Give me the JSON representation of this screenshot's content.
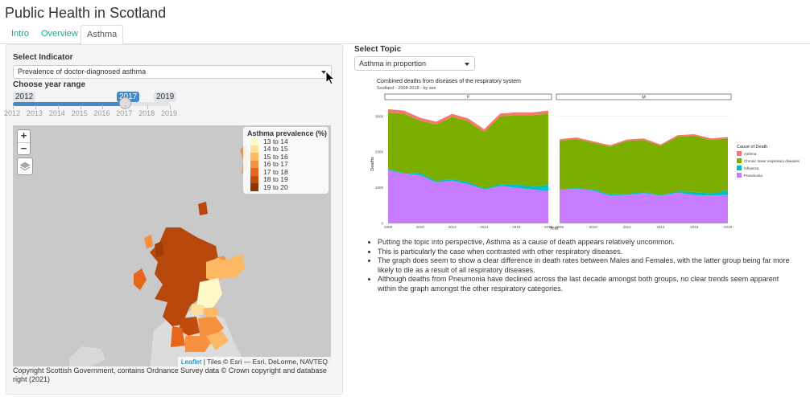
{
  "app": {
    "title": "Public Health in Scotland"
  },
  "tabs": [
    {
      "label": "Intro"
    },
    {
      "label": "Overview"
    },
    {
      "label": "Asthma"
    }
  ],
  "sidebar": {
    "indicator_label": "Select Indicator",
    "indicator_value": "Prevalence of doctor-diagnosed asthma",
    "year_label": "Choose year range",
    "slider": {
      "min": "2012",
      "max": "2019",
      "selected": "2017",
      "ticks": [
        "2012",
        "2013",
        "2014",
        "2015",
        "2016",
        "2017",
        "2018",
        "2019"
      ],
      "selected_fraction": 0.714
    }
  },
  "map": {
    "zoom_in": "+",
    "zoom_out": "−",
    "legend_title": "Asthma prevalence (%)",
    "legend": [
      {
        "label": "13 to 14",
        "color": "#fff8c8"
      },
      {
        "label": "14 to 15",
        "color": "#fedf9a"
      },
      {
        "label": "15 to 16",
        "color": "#fdb863"
      },
      {
        "label": "16 to 17",
        "color": "#f7913d"
      },
      {
        "label": "17 to 18",
        "color": "#e6661b"
      },
      {
        "label": "18 to 19",
        "color": "#c24c0e"
      },
      {
        "label": "19 to 20",
        "color": "#8e3506"
      }
    ],
    "attribution_link": "Leaflet",
    "attribution_text": " | Tiles © Esri — Esri, DeLorme, NAVTEQ",
    "copyright": "Copyright Scottish Government, contains Ordnance Survey data © Crown copyright and database right (2021)"
  },
  "topic": {
    "label": "Select Topic",
    "value": "Asthma in proportion"
  },
  "chart_data": {
    "type": "area",
    "title": "Combined deaths from diseases of the respiratory system",
    "subtitle": "Scotland - 2008-2018 - by sex",
    "xlabel": "Year",
    "ylabel": "Deaths",
    "ylim": [
      0,
      3400
    ],
    "yticks": [
      0,
      1000,
      2000,
      3000
    ],
    "xticks": [
      2008,
      2010,
      2012,
      2014,
      2016,
      2018
    ],
    "legend_title": "Cause of Death",
    "legend_position": "right",
    "facets": [
      "F",
      "M"
    ],
    "x": [
      2008,
      2009,
      2010,
      2011,
      2012,
      2013,
      2014,
      2015,
      2016,
      2017,
      2018
    ],
    "series": [
      {
        "name": "Asthma",
        "color": "#f8766d"
      },
      {
        "name": "Chronic lower respiratory diseases",
        "color": "#7cae00"
      },
      {
        "name": "Influenza",
        "color": "#00bfc4"
      },
      {
        "name": "Pneumonia",
        "color": "#c77cff"
      }
    ],
    "panels": [
      {
        "facet": "F",
        "values": {
          "Pneumonia": [
            1500,
            1400,
            1350,
            1150,
            1200,
            1100,
            950,
            1050,
            1000,
            950,
            900
          ],
          "Influenza": [
            30,
            20,
            60,
            40,
            40,
            60,
            30,
            50,
            100,
            80,
            180
          ],
          "Chronic lower respiratory diseases": [
            1580,
            1650,
            1470,
            1580,
            1750,
            1700,
            1580,
            1900,
            1930,
            2000,
            2000
          ],
          "Asthma": [
            90,
            90,
            80,
            80,
            80,
            80,
            80,
            80,
            80,
            80,
            80
          ]
        }
      },
      {
        "facet": "M",
        "values": {
          "Pneumonia": [
            940,
            970,
            920,
            780,
            800,
            850,
            770,
            860,
            800,
            780,
            800
          ],
          "Influenza": [
            20,
            20,
            40,
            30,
            30,
            40,
            20,
            40,
            80,
            60,
            130
          ],
          "Chronic lower respiratory diseases": [
            1360,
            1380,
            1300,
            1340,
            1480,
            1450,
            1380,
            1530,
            1580,
            1500,
            1450
          ],
          "Asthma": [
            40,
            40,
            40,
            40,
            40,
            40,
            40,
            40,
            40,
            40,
            40
          ]
        }
      }
    ]
  },
  "notes": [
    "Putting the topic into perspective, Asthma as a cause of death appears relatively uncommon.",
    "This is particularly the case when contrasted with other respiratory diseases.",
    "The graph does seem to show a clear difference in death rates between Males and Females, with the latter group being far more likely to die as a result of all respiratory diseases.",
    "Although deaths from Pneumonia have declined across the last decade amongst both groups, no clear trends seem apparent within the graph amongst the other respiratory categories."
  ]
}
